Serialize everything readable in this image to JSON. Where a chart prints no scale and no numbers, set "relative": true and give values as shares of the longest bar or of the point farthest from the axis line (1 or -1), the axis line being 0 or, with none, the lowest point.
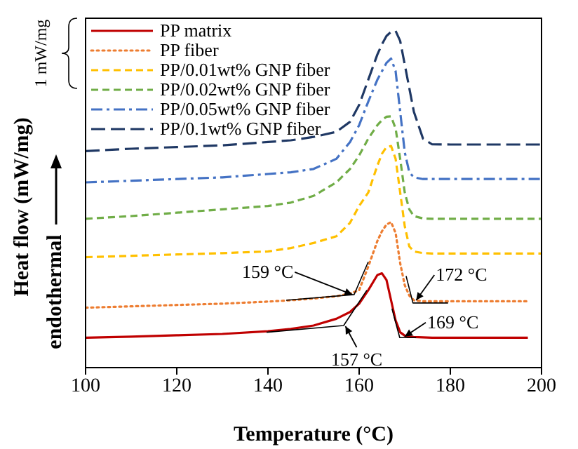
{
  "chart_data": {
    "type": "line",
    "xlabel": "Temperature (°C)",
    "ylabel": "Heat flow (mW/mg)",
    "relative": true,
    "legend": "top left",
    "x": [
      100,
      110,
      120,
      130,
      140,
      145,
      150,
      155,
      158,
      160,
      162,
      164,
      165,
      166,
      167,
      168,
      169,
      170,
      171,
      172,
      174,
      176,
      180,
      190,
      197,
      200
    ],
    "xlim": [
      100,
      200
    ],
    "xticks": [
      100,
      120,
      140,
      160,
      180,
      200
    ],
    "series": [
      {
        "name": "PP matrix",
        "color": "#c00000",
        "line_style": "solid",
        "values": [
          0.089,
          0.092,
          0.096,
          0.1,
          0.108,
          0.115,
          0.125,
          0.145,
          0.165,
          0.19,
          0.23,
          0.275,
          0.28,
          0.26,
          0.2,
          0.14,
          0.105,
          0.095,
          0.092,
          0.091,
          0.09,
          0.089,
          0.089,
          0.089,
          0.089,
          null
        ]
      },
      {
        "name": "PP fiber",
        "color": "#ed7d31",
        "line_style": "dotted",
        "values": [
          0.178,
          0.182,
          0.186,
          0.19,
          0.196,
          0.2,
          0.205,
          0.212,
          0.22,
          0.23,
          0.3,
          0.376,
          0.405,
          0.425,
          0.432,
          0.4,
          0.31,
          0.245,
          0.214,
          0.2,
          0.197,
          0.197,
          0.197,
          0.197,
          0.197,
          null
        ]
      },
      {
        "name": "PP/0.01wt% GNP fiber",
        "color": "#ffc000",
        "line_style": "dashed",
        "values": [
          0.328,
          0.332,
          0.336,
          0.34,
          0.345,
          0.355,
          0.37,
          0.39,
          0.43,
          0.48,
          0.52,
          0.6,
          0.635,
          0.655,
          0.658,
          0.62,
          0.52,
          0.42,
          0.36,
          0.345,
          0.34,
          0.339,
          0.339,
          0.339,
          0.339,
          0.339
        ]
      },
      {
        "name": "PP/0.02wt% GNP fiber",
        "color": "#70ad47",
        "line_style": "dashed",
        "values": [
          0.442,
          0.45,
          0.46,
          0.47,
          0.48,
          0.49,
          0.51,
          0.55,
          0.59,
          0.63,
          0.68,
          0.72,
          0.735,
          0.745,
          0.746,
          0.71,
          0.62,
          0.52,
          0.47,
          0.45,
          0.443,
          0.442,
          0.442,
          0.442,
          0.442,
          0.442
        ]
      },
      {
        "name": "PP/0.05wt% GNP fiber",
        "color": "#4472c4",
        "line_style": "dash-dot",
        "values": [
          0.55,
          0.555,
          0.56,
          0.565,
          0.575,
          0.58,
          0.59,
          0.62,
          0.67,
          0.72,
          0.79,
          0.855,
          0.88,
          0.905,
          0.918,
          0.88,
          0.76,
          0.64,
          0.58,
          0.565,
          0.56,
          0.56,
          0.56,
          0.56,
          0.56,
          0.56
        ]
      },
      {
        "name": "PP/0.1wt% GNP fiber",
        "color": "#1f3864",
        "line_style": "long-dash",
        "values": [
          0.643,
          0.65,
          0.655,
          0.66,
          0.67,
          0.675,
          0.685,
          0.7,
          0.73,
          0.78,
          0.855,
          0.93,
          0.96,
          0.985,
          0.997,
          1.0,
          0.97,
          0.9,
          0.83,
          0.76,
          0.68,
          0.663,
          0.6625,
          0.6625,
          0.6625,
          0.6625
        ]
      },
      {
        "type": "line",
        "color": "#000000",
        "line_style": "solid",
        "x": [
          144,
          158.9,
          162
        ],
        "values": [
          0.2,
          0.217,
          0.314
        ]
      },
      {
        "type": "line",
        "color": "#000000",
        "line_style": "solid",
        "x": [
          170.3,
          171.8,
          179.5
        ],
        "values": [
          0.272,
          0.192,
          0.192
        ]
      },
      {
        "type": "line",
        "color": "#000000",
        "line_style": "solid",
        "x": [
          139.7,
          156.6,
          161.7
        ],
        "values": [
          0.105,
          0.125,
          0.23
        ]
      },
      {
        "type": "line",
        "color": "#000000",
        "line_style": "solid",
        "x": [
          167.2,
          168.9,
          172.5
        ],
        "values": [
          0.175,
          0.089,
          0.089
        ]
      }
    ],
    "annotations": [
      {
        "text": "159 °C",
        "x": 158.5,
        "y": 0.217
      },
      {
        "text": "172 °C",
        "x": 172.5,
        "y": 0.2
      },
      {
        "text": "169 °C",
        "x": 170,
        "y": 0.092
      },
      {
        "text": "157 °C",
        "x": 157,
        "y": 0.123
      },
      "1 mW/mg",
      "endothermal"
    ]
  }
}
